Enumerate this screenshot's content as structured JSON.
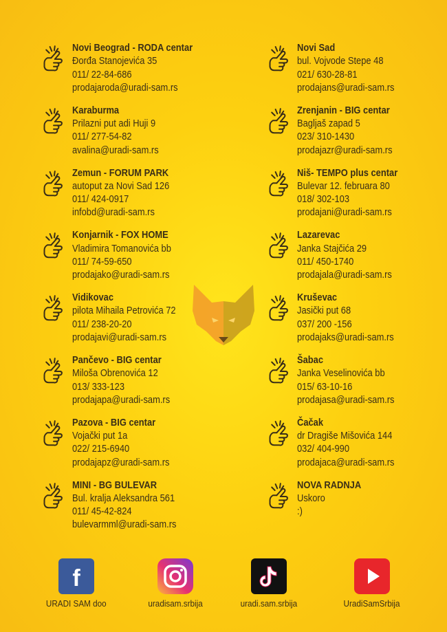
{
  "stores": {
    "left": [
      [
        "Novi Beograd - RODA centar",
        "Đorđa Stanojevića 35",
        "011/ 22-84-686",
        "prodajaroda@uradi-sam.rs"
      ],
      [
        "Karaburma",
        "Prilazni put adi Huji 9",
        "011/ 277-54-82",
        "avalina@uradi-sam.rs"
      ],
      [
        "Zemun - FORUM PARK",
        "autoput za Novi Sad 126",
        "011/ 424-0917",
        "infobd@uradi-sam.rs"
      ],
      [
        "Konjarnik - FOX HOME",
        "Vladimira Tomanovića bb",
        "011/ 74-59-650",
        "prodajako@uradi-sam.rs"
      ],
      [
        "Vidikovac",
        "pilota Mihaila Petrovića 72",
        "011/ 238-20-20",
        "prodajavi@uradi-sam.rs"
      ],
      [
        "Pančevo - BIG centar",
        "Miloša Obrenovića 12",
        "013/ 333-123",
        "prodajapa@uradi-sam.rs"
      ],
      [
        "Pazova - BIG centar",
        "Vojački put 1a",
        "022/ 215-6940",
        "prodajapz@uradi-sam.rs"
      ],
      [
        "MINI - BG BULEVAR",
        "Bul. kralja Aleksandra 561",
        "011/ 45-42-824",
        "bulevarmml@uradi-sam.rs"
      ]
    ],
    "right": [
      [
        "Novi Sad",
        "bul. Vojvode Stepe 48",
        "021/ 630-28-81",
        "prodajans@uradi-sam.rs"
      ],
      [
        "Zrenjanin - BIG  centar",
        "Bagljaš zapad 5",
        "023/ 310-1430",
        "prodajazr@uradi-sam.rs"
      ],
      [
        "Niš- TEMPO plus centar",
        "Bulevar 12. februara 80",
        "018/ 302-103",
        "prodajani@uradi-sam.rs"
      ],
      [
        "Lazarevac",
        "Janka Stajčića 29",
        "011/ 450-1740",
        "prodajala@uradi-sam.rs"
      ],
      [
        "Kruševac",
        "Jasički put 68",
        "037/ 200 -156",
        "prodajaks@uradi-sam.rs"
      ],
      [
        "Šabac",
        "Janka Veselinovića bb",
        "015/ 63-10-16",
        "prodajasa@uradi-sam.rs"
      ],
      [
        "Čačak",
        "dr Dragiše Mišovića 144",
        "032/ 404-990",
        "prodajaca@uradi-sam.rs"
      ],
      [
        "NOVA RADNJA",
        "Uskoro",
        ":)"
      ]
    ]
  },
  "social": [
    {
      "icon": "f",
      "label": "URADI SAM doo"
    },
    {
      "label": "uradisam.srbija"
    },
    {
      "label": "uradi.sam.srbija"
    },
    {
      "label": "UradiSamSrbija"
    }
  ]
}
